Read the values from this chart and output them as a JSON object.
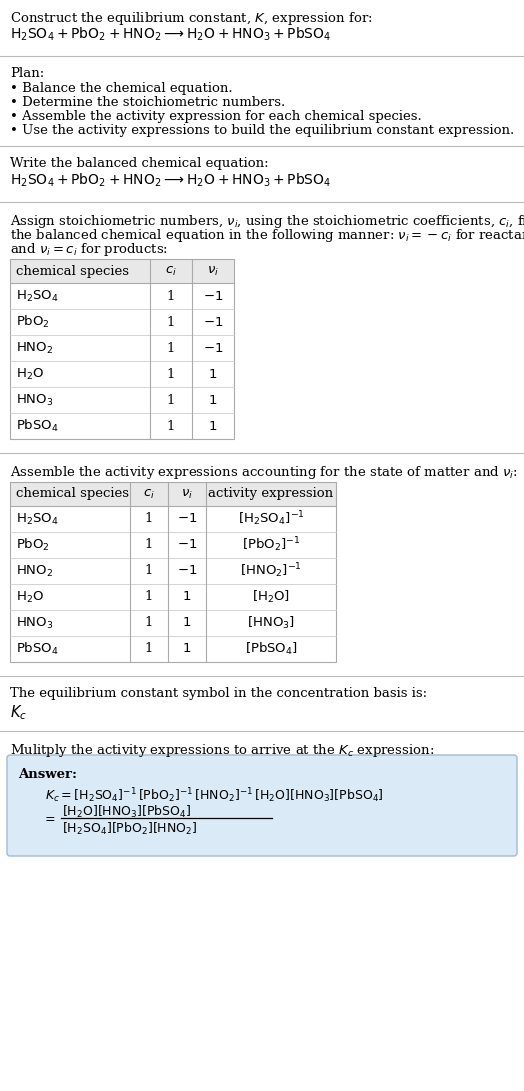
{
  "title_line1": "Construct the equilibrium constant, $K$, expression for:",
  "title_line2": "$\\mathrm{H_2SO_4 + PbO_2 + HNO_2 \\longrightarrow H_2O + HNO_3 + PbSO_4}$",
  "plan_header": "Plan:",
  "plan_items": [
    "• Balance the chemical equation.",
    "• Determine the stoichiometric numbers.",
    "• Assemble the activity expression for each chemical species.",
    "• Use the activity expressions to build the equilibrium constant expression."
  ],
  "balanced_header": "Write the balanced chemical equation:",
  "balanced_eq": "$\\mathrm{H_2SO_4 + PbO_2 + HNO_2 \\longrightarrow H_2O + HNO_3 + PbSO_4}$",
  "stoich_text1": "Assign stoichiometric numbers, $\\nu_i$, using the stoichiometric coefficients, $c_i$, from",
  "stoich_text2": "the balanced chemical equation in the following manner: $\\nu_i = -c_i$ for reactants",
  "stoich_text3": "and $\\nu_i = c_i$ for products:",
  "table1_cols": [
    "chemical species",
    "$c_i$",
    "$\\nu_i$"
  ],
  "table1_rows": [
    [
      "$\\mathrm{H_2SO_4}$",
      "1",
      "$-1$"
    ],
    [
      "$\\mathrm{PbO_2}$",
      "1",
      "$-1$"
    ],
    [
      "$\\mathrm{HNO_2}$",
      "1",
      "$-1$"
    ],
    [
      "$\\mathrm{H_2O}$",
      "1",
      "$1$"
    ],
    [
      "$\\mathrm{HNO_3}$",
      "1",
      "$1$"
    ],
    [
      "$\\mathrm{PbSO_4}$",
      "1",
      "$1$"
    ]
  ],
  "activity_header": "Assemble the activity expressions accounting for the state of matter and $\\nu_i$:",
  "table2_cols": [
    "chemical species",
    "$c_i$",
    "$\\nu_i$",
    "activity expression"
  ],
  "table2_rows": [
    [
      "$\\mathrm{H_2SO_4}$",
      "1",
      "$-1$",
      "$[\\mathrm{H_2SO_4}]^{-1}$"
    ],
    [
      "$\\mathrm{PbO_2}$",
      "1",
      "$-1$",
      "$[\\mathrm{PbO_2}]^{-1}$"
    ],
    [
      "$\\mathrm{HNO_2}$",
      "1",
      "$-1$",
      "$[\\mathrm{HNO_2}]^{-1}$"
    ],
    [
      "$\\mathrm{H_2O}$",
      "1",
      "$1$",
      "$[\\mathrm{H_2O}]$"
    ],
    [
      "$\\mathrm{HNO_3}$",
      "1",
      "$1$",
      "$[\\mathrm{HNO_3}]$"
    ],
    [
      "$\\mathrm{PbSO_4}$",
      "1",
      "$1$",
      "$[\\mathrm{PbSO_4}]$"
    ]
  ],
  "kc_header": "The equilibrium constant symbol in the concentration basis is:",
  "kc_symbol": "$K_c$",
  "multiply_header": "Mulitply the activity expressions to arrive at the $K_c$ expression:",
  "answer_label": "Answer:",
  "answer_line1": "$K_c = [\\mathrm{H_2SO_4}]^{-1}\\,[\\mathrm{PbO_2}]^{-1}\\,[\\mathrm{HNO_2}]^{-1}\\,[\\mathrm{H_2O}][\\mathrm{HNO_3}][\\mathrm{PbSO_4}]$",
  "answer_num": "$[\\mathrm{H_2O}][\\mathrm{HNO_3}][\\mathrm{PbSO_4}]$",
  "answer_den": "$[\\mathrm{H_2SO_4}][\\mathrm{PbO_2}][\\mathrm{HNO_2}]$",
  "bg_color": "#ffffff",
  "answer_bg": "#daeaf7",
  "answer_border": "#a0bcd0",
  "text_color": "#000000",
  "divider_color": "#bbbbbb",
  "table_border_color": "#aaaaaa",
  "table_row_div_color": "#cccccc",
  "table_header_bg": "#e8e8e8",
  "font_size": 9.5,
  "table_font_size": 9.5
}
